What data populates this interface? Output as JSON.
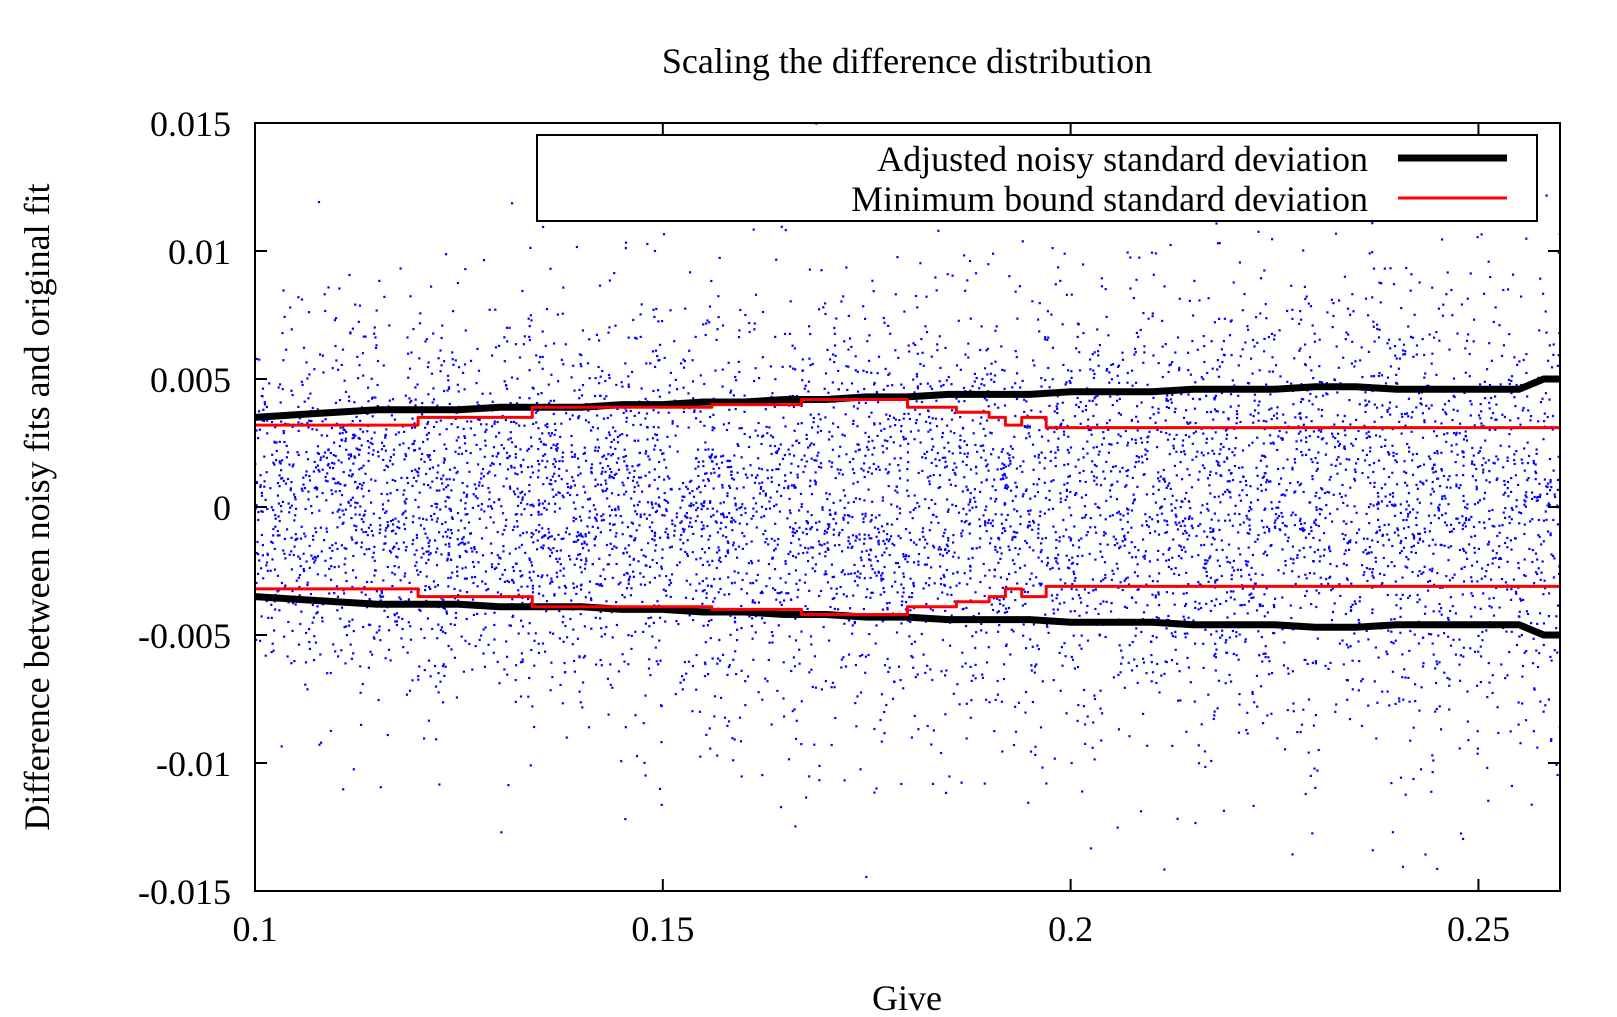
{
  "chart_data": {
    "type": "scatter",
    "title": "Scaling the difference distribution",
    "xlabel": "Give",
    "ylabel": "Difference between noisy fits and original fit",
    "xlim": [
      0.1,
      0.26
    ],
    "ylim": [
      -0.015,
      0.015
    ],
    "x_ticks": [
      0.1,
      0.15,
      0.2,
      0.25
    ],
    "x_tick_labels": [
      "0.1",
      "0.15",
      "0.2",
      "0.25"
    ],
    "y_ticks": [
      0.015,
      0.01,
      0.005,
      0,
      -0.005,
      -0.01,
      -0.015
    ],
    "y_tick_labels": [
      "0.015",
      "0.01",
      "0.005",
      "0",
      "-0.005",
      "-0.01",
      "-0.015"
    ],
    "grid": false,
    "legend_position": "top-right",
    "scatter": {
      "color": "#0000ff",
      "count": 7000,
      "seed": 12345,
      "note_sd_follows_adjusted_sd": true
    },
    "series": [
      {
        "name": "Adjusted noisy standard deviation",
        "color": "#000000",
        "symmetric": true,
        "x": [
          0.1,
          0.105,
          0.11,
          0.115,
          0.12,
          0.125,
          0.13,
          0.135,
          0.14,
          0.145,
          0.15,
          0.155,
          0.16,
          0.165,
          0.17,
          0.175,
          0.18,
          0.185,
          0.19,
          0.195,
          0.2,
          0.205,
          0.21,
          0.215,
          0.22,
          0.225,
          0.23,
          0.235,
          0.24,
          0.245,
          0.25,
          0.255,
          0.258,
          0.26
        ],
        "y": [
          0.0035,
          0.0036,
          0.0037,
          0.0038,
          0.0038,
          0.0038,
          0.0039,
          0.0039,
          0.0039,
          0.004,
          0.004,
          0.0041,
          0.0041,
          0.0042,
          0.0042,
          0.0043,
          0.0043,
          0.0044,
          0.0044,
          0.0044,
          0.0045,
          0.0045,
          0.0045,
          0.0046,
          0.0046,
          0.0046,
          0.0047,
          0.0047,
          0.0046,
          0.0046,
          0.0046,
          0.0046,
          0.005,
          0.005
        ]
      },
      {
        "name": "Minimum bound standard deviation",
        "color": "#ff0000",
        "symmetric": true,
        "step": true,
        "x": [
          0.1,
          0.12,
          0.134,
          0.156,
          0.167,
          0.18,
          0.186,
          0.19,
          0.192,
          0.194,
          0.197,
          0.26
        ],
        "y": [
          0.0032,
          0.0035,
          0.0039,
          0.004,
          0.0042,
          0.0039,
          0.0037,
          0.0035,
          0.0032,
          0.0035,
          0.0031,
          0.0031
        ]
      }
    ]
  }
}
